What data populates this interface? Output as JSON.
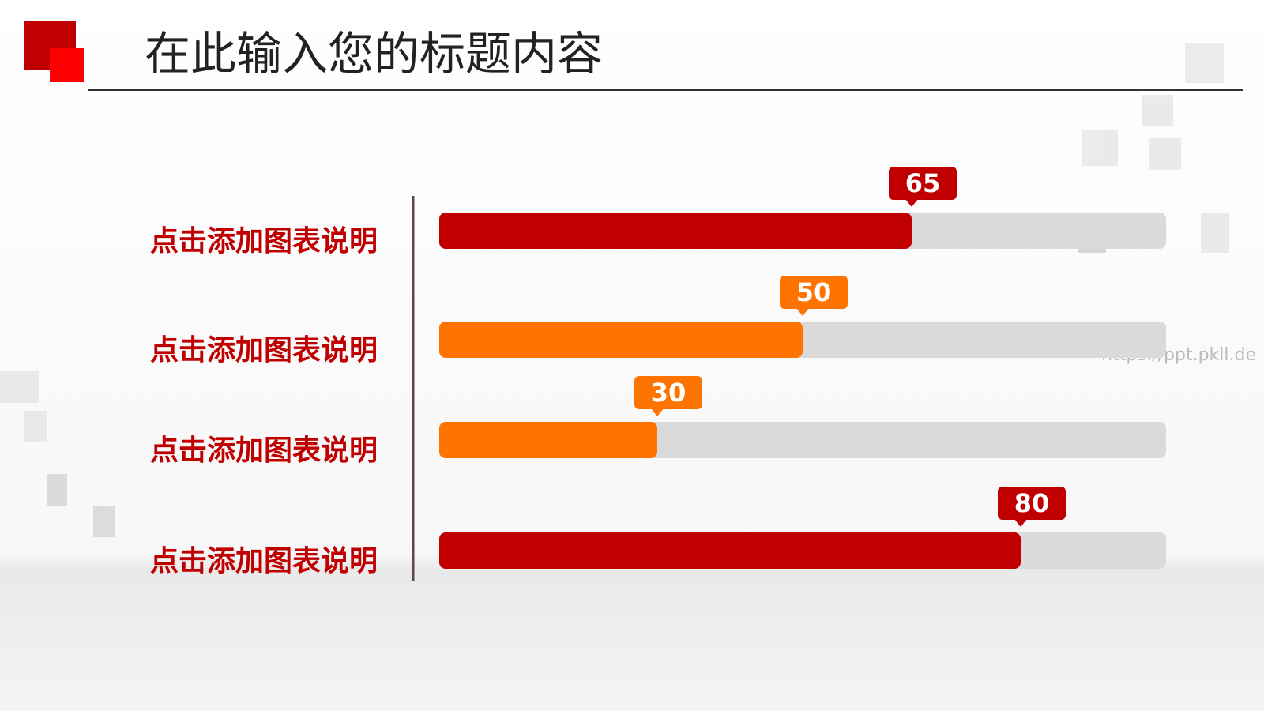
{
  "chart_data": {
    "type": "hbar",
    "title": "在此输入您的标题内容",
    "categories": [
      "点击添加图表说明",
      "点击添加图表说明",
      "点击添加图表说明",
      "点击添加图表说明"
    ],
    "values": [
      65,
      50,
      30,
      80
    ],
    "colors": [
      "#c00000",
      "#ff7300",
      "#ff7300",
      "#c00000"
    ],
    "xlim": [
      0,
      100
    ],
    "watermark": "https://ppt.pkll.de"
  }
}
